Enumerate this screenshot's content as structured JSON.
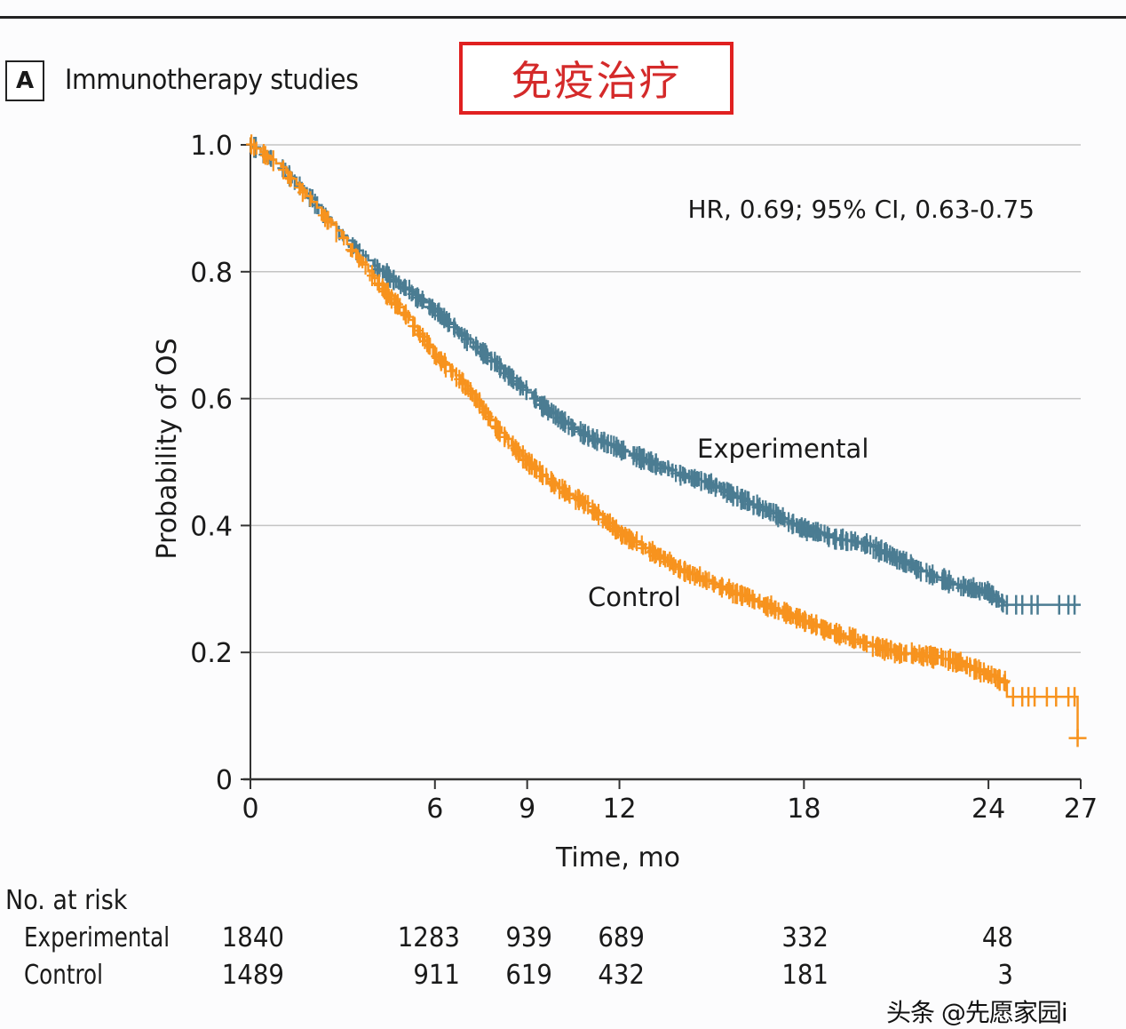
{
  "figure": {
    "panel_letter": "A",
    "panel_title": "Immunotherapy studies",
    "overlay_label": "免疫治疗",
    "watermark": "头条 @先愿家园i"
  },
  "colors": {
    "experimental": "#4b7c92",
    "control": "#f7931e",
    "grid": "#c4c4c4",
    "axis": "#333333",
    "overlay_border": "#e02020"
  },
  "chart_data": {
    "type": "line",
    "subtype": "kaplan-meier",
    "title": "Immunotherapy studies",
    "xlabel": "Time, mo",
    "ylabel": "Probability of OS",
    "xlim": [
      0,
      27
    ],
    "ylim": [
      0,
      1.0
    ],
    "xticks": [
      0,
      6,
      9,
      12,
      18,
      24,
      27
    ],
    "xtick_labels": [
      "0",
      "6",
      "9",
      "12",
      "18",
      "24",
      "27"
    ],
    "yticks": [
      0,
      0.2,
      0.4,
      0.6,
      0.8,
      1.0
    ],
    "ytick_labels": [
      "0",
      "0.2",
      "0.4",
      "0.6",
      "0.8",
      "1.0"
    ],
    "grid": "horizontal",
    "annotation": "HR, 0.69; 95% CI, 0.63-0.75",
    "series": [
      {
        "name": "Experimental",
        "label": "Experimental",
        "points": [
          [
            0,
            1.0
          ],
          [
            1,
            0.965
          ],
          [
            2,
            0.915
          ],
          [
            2.8,
            0.865
          ],
          [
            4,
            0.81
          ],
          [
            5,
            0.775
          ],
          [
            6,
            0.74
          ],
          [
            7,
            0.695
          ],
          [
            8,
            0.655
          ],
          [
            9,
            0.61
          ],
          [
            10,
            0.57
          ],
          [
            11,
            0.54
          ],
          [
            12,
            0.52
          ],
          [
            13,
            0.5
          ],
          [
            14,
            0.48
          ],
          [
            15,
            0.465
          ],
          [
            16,
            0.44
          ],
          [
            17,
            0.42
          ],
          [
            18,
            0.395
          ],
          [
            19,
            0.38
          ],
          [
            20,
            0.37
          ],
          [
            21,
            0.35
          ],
          [
            22,
            0.325
          ],
          [
            23,
            0.305
          ],
          [
            24,
            0.295
          ],
          [
            24.5,
            0.275
          ],
          [
            27,
            0.275
          ]
        ],
        "censor_marks_end": [
          24.6,
          24.9,
          25.1,
          25.4,
          25.6,
          26.3,
          26.6,
          26.8
        ]
      },
      {
        "name": "Control",
        "label": "Control",
        "points": [
          [
            0,
            1.0
          ],
          [
            1,
            0.965
          ],
          [
            2,
            0.91
          ],
          [
            2.8,
            0.865
          ],
          [
            4,
            0.79
          ],
          [
            5,
            0.735
          ],
          [
            6,
            0.67
          ],
          [
            7,
            0.62
          ],
          [
            8,
            0.555
          ],
          [
            9,
            0.5
          ],
          [
            10,
            0.46
          ],
          [
            11,
            0.43
          ],
          [
            12,
            0.39
          ],
          [
            13,
            0.36
          ],
          [
            14,
            0.33
          ],
          [
            15,
            0.31
          ],
          [
            16,
            0.29
          ],
          [
            17,
            0.27
          ],
          [
            18,
            0.25
          ],
          [
            19,
            0.23
          ],
          [
            20,
            0.215
          ],
          [
            21,
            0.2
          ],
          [
            22,
            0.195
          ],
          [
            23,
            0.185
          ],
          [
            24,
            0.165
          ],
          [
            24.6,
            0.153
          ],
          [
            24.6,
            0.13
          ],
          [
            26.9,
            0.13
          ],
          [
            26.9,
            0.065
          ]
        ],
        "censor_marks_end": [
          24.8,
          25.1,
          25.3,
          25.5,
          25.9,
          26.2,
          26.6,
          26.8
        ]
      }
    ]
  },
  "risk_table": {
    "header": "No. at risk",
    "timepoints": [
      0,
      6,
      9,
      12,
      18,
      24
    ],
    "rows": [
      {
        "label": "Experimental",
        "values": [
          "1840",
          "1283",
          "939",
          "689",
          "332",
          "48"
        ]
      },
      {
        "label": "Control",
        "values": [
          "1489",
          "911",
          "619",
          "432",
          "181",
          "3"
        ]
      }
    ]
  }
}
